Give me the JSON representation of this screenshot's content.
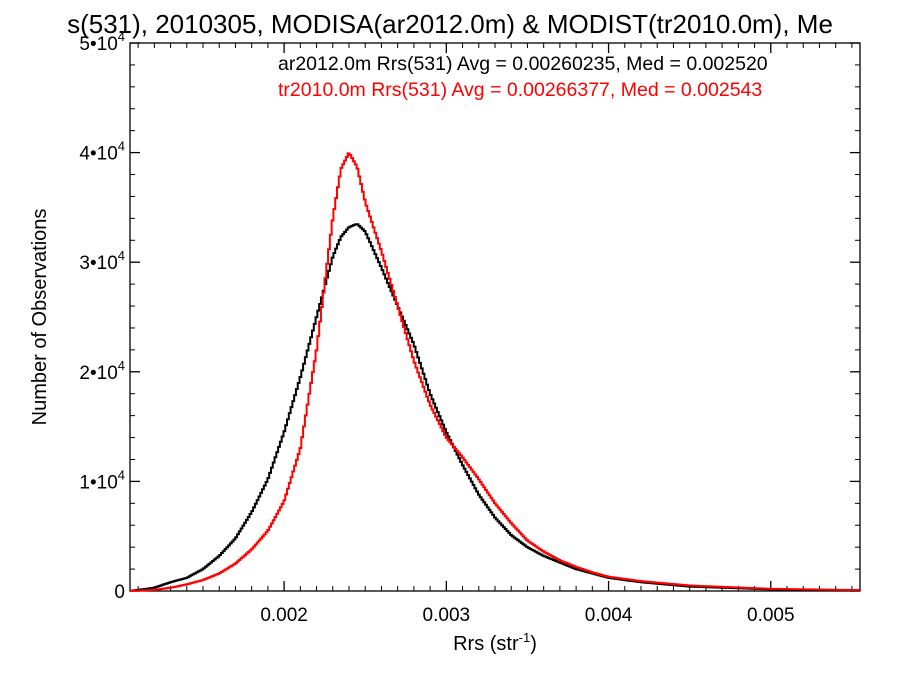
{
  "chart_data": {
    "type": "line",
    "title": "s(531), 2010305, MODISA(ar2012.0m) & MODIST(tr2010.0m), Me",
    "xlabel": "Rrs (str",
    "xlabel_sup": "-1",
    "xlabel_end": ")",
    "ylabel": "Number of Observations",
    "xlim": [
      0.00105,
      0.00555
    ],
    "ylim": [
      0,
      50000
    ],
    "grid": false,
    "step": true,
    "x_ticks": [
      {
        "value": 0.002,
        "label": "0.002"
      },
      {
        "value": 0.003,
        "label": "0.003"
      },
      {
        "value": 0.004,
        "label": "0.004"
      },
      {
        "value": 0.005,
        "label": "0.005"
      }
    ],
    "y_ticks": [
      {
        "value": 0,
        "mantissa": "0",
        "exp": ""
      },
      {
        "value": 10000,
        "mantissa": "1•10",
        "exp": "4"
      },
      {
        "value": 20000,
        "mantissa": "2•10",
        "exp": "4"
      },
      {
        "value": 30000,
        "mantissa": "3•10",
        "exp": "4"
      },
      {
        "value": 40000,
        "mantissa": "4•10",
        "exp": "4"
      },
      {
        "value": 50000,
        "mantissa": "5•10",
        "exp": "4"
      }
    ],
    "series": [
      {
        "name": "ar2012.0m Rrs(531) Avg = 0.00260235, Med = 0.002520",
        "color": "#000000",
        "x": [
          0.00105,
          0.0012,
          0.0013,
          0.0014,
          0.0015,
          0.0016,
          0.0017,
          0.0018,
          0.0019,
          0.002,
          0.0021,
          0.0022,
          0.0023,
          0.00235,
          0.0024,
          0.00245,
          0.0025,
          0.0026,
          0.0027,
          0.0028,
          0.0029,
          0.003,
          0.0031,
          0.0032,
          0.0033,
          0.0034,
          0.0035,
          0.0036,
          0.0037,
          0.0038,
          0.0039,
          0.004,
          0.0042,
          0.0045,
          0.005,
          0.00555
        ],
        "y": [
          0,
          300,
          800,
          1200,
          2000,
          3200,
          4800,
          7200,
          10200,
          14500,
          19500,
          25000,
          30500,
          32300,
          33200,
          33500,
          32800,
          29500,
          26000,
          22500,
          18000,
          14500,
          11500,
          8800,
          6700,
          5100,
          4000,
          3200,
          2600,
          2000,
          1600,
          1200,
          800,
          400,
          150,
          60
        ]
      },
      {
        "name": "tr2010.0m Rrs(531) Avg = 0.00266377, Med = 0.002543",
        "color": "#ff0000",
        "x": [
          0.00105,
          0.0012,
          0.0013,
          0.0014,
          0.0015,
          0.0016,
          0.0017,
          0.0018,
          0.0019,
          0.002,
          0.0021,
          0.0022,
          0.0023,
          0.00235,
          0.0024,
          0.00245,
          0.0025,
          0.0026,
          0.0027,
          0.0028,
          0.0029,
          0.003,
          0.0031,
          0.0032,
          0.0033,
          0.0034,
          0.0035,
          0.0036,
          0.0037,
          0.0038,
          0.0039,
          0.004,
          0.0042,
          0.0045,
          0.005,
          0.00555
        ],
        "y": [
          0,
          100,
          300,
          600,
          1000,
          1600,
          2500,
          3800,
          5500,
          8200,
          13000,
          22000,
          34000,
          38500,
          40000,
          38700,
          35500,
          31000,
          26000,
          21000,
          17000,
          14000,
          12200,
          10200,
          8000,
          6200,
          4600,
          3600,
          2800,
          2200,
          1700,
          1300,
          900,
          500,
          200,
          80
        ]
      }
    ]
  }
}
